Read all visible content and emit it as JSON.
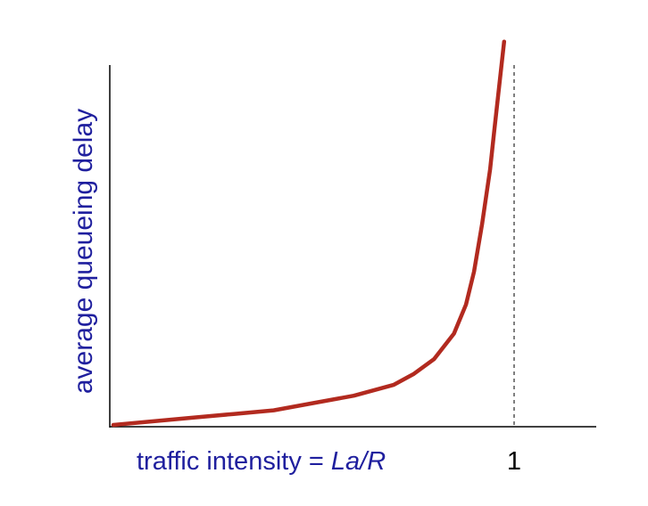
{
  "chart_data": {
    "type": "line",
    "xlabel": {
      "prefix": "traffic intensity = ",
      "variable": "La/R"
    },
    "ylabel": "average  queueing delay",
    "x_ticks": [
      {
        "value": 1,
        "label": "1"
      }
    ],
    "asymptote_x": 1,
    "grid": false,
    "legend": "none",
    "xlim": [
      0,
      1.2
    ],
    "series": [
      {
        "color": "#b22a1f",
        "points": [
          [
            0.0,
            0.0
          ],
          [
            0.1,
            0.01
          ],
          [
            0.2,
            0.02
          ],
          [
            0.3,
            0.03
          ],
          [
            0.4,
            0.04
          ],
          [
            0.5,
            0.06
          ],
          [
            0.6,
            0.08
          ],
          [
            0.7,
            0.11
          ],
          [
            0.75,
            0.14
          ],
          [
            0.8,
            0.18
          ],
          [
            0.85,
            0.25
          ],
          [
            0.88,
            0.33
          ],
          [
            0.9,
            0.42
          ],
          [
            0.92,
            0.55
          ],
          [
            0.94,
            0.7
          ],
          [
            0.95,
            0.8
          ],
          [
            0.96,
            0.9
          ],
          [
            0.975,
            1.05
          ]
        ]
      }
    ],
    "ylim": [
      0,
      1.12
    ],
    "colors": {
      "curve": "#b22a1f",
      "axis_text": "#1f1f9e",
      "axes": "#000000",
      "asymptote": "#555555"
    }
  }
}
